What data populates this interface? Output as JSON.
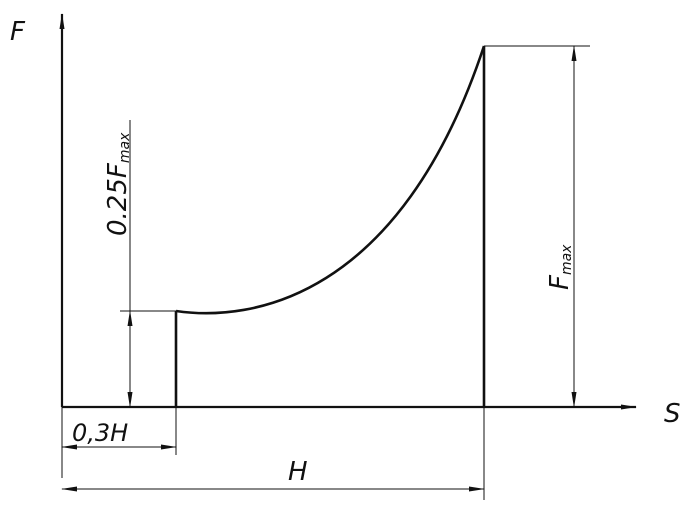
{
  "axes": {
    "y_label": "F",
    "x_label": "S"
  },
  "dimensions": {
    "stroke_color": "#111111",
    "force_quarter": {
      "prefix": "0.25F",
      "subscript": "max"
    },
    "force_max": {
      "prefix": "F",
      "subscript": "max"
    },
    "start_offset": "0,3H",
    "stroke_length": "H"
  }
}
